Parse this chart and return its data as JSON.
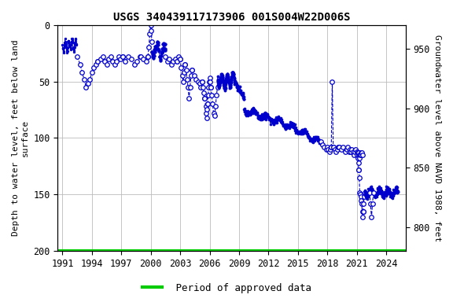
{
  "title": "USGS 340439117173906 001S004W22D006S",
  "ylabel_left": "Depth to water level, feet below land\nsurface",
  "ylabel_right": "Groundwater level above NAVD 1988, feet",
  "ylim_left": [
    200,
    0
  ],
  "ylim_right": [
    780,
    970
  ],
  "xlim": [
    1990.5,
    2026.0
  ],
  "xticks": [
    1991,
    1994,
    1997,
    2000,
    2003,
    2006,
    2009,
    2012,
    2015,
    2018,
    2021,
    2024
  ],
  "yticks_left": [
    0,
    50,
    100,
    150,
    200
  ],
  "yticks_right": [
    800,
    850,
    900,
    950
  ],
  "line_color": "#0000CC",
  "marker_color": "#0000CC",
  "approved_color": "#00CC00",
  "background_color": "#ffffff",
  "grid_color": "#bbbbbb",
  "title_fontsize": 10,
  "axis_label_fontsize": 8,
  "tick_fontsize": 8.5,
  "legend_fontsize": 9,
  "approved_line_y": 200,
  "figure_width": 5.76,
  "figure_height": 3.84,
  "dpi": 100
}
